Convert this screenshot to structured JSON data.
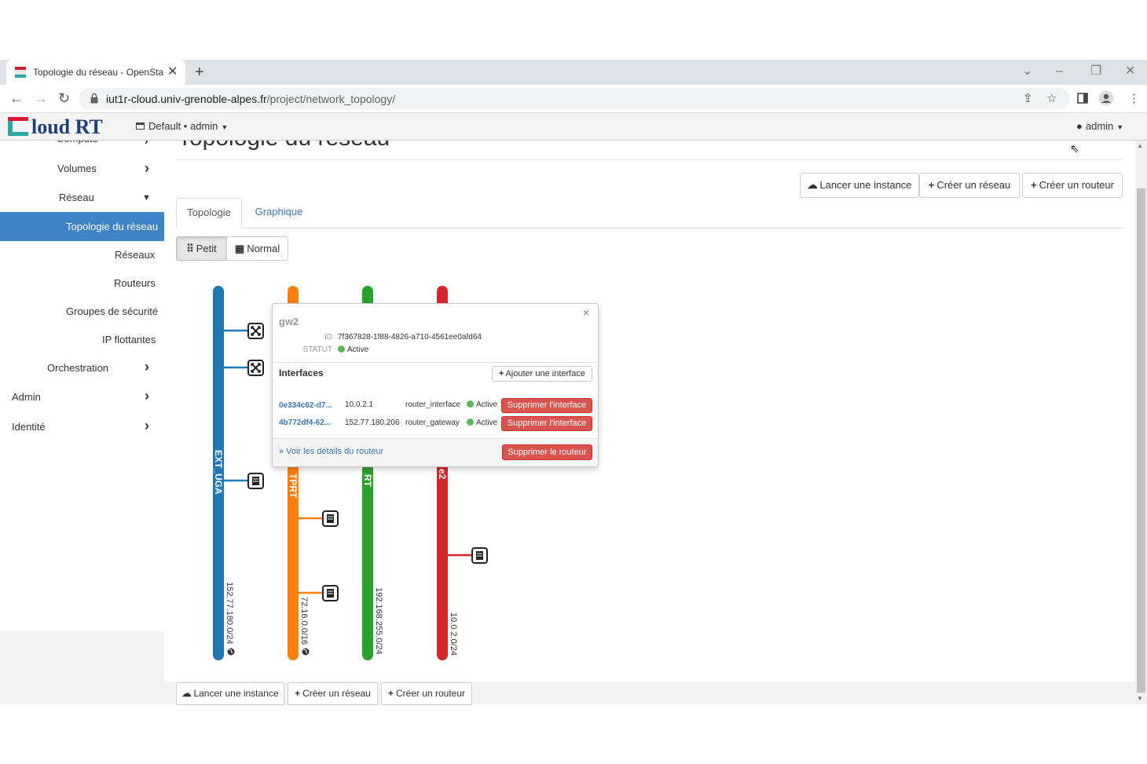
{
  "browser": {
    "tab_title": "Topologie du réseau - OpenStack",
    "url_host": "iut1r-cloud.univ-grenoble-alpes.fr",
    "url_path": "/project/network_topology/",
    "new_tab_symbol": "+",
    "close_symbol": "✕"
  },
  "header": {
    "logo_text": "loud RT",
    "domain_switcher": "Default • admin",
    "user": "admin"
  },
  "sidebar": {
    "items": [
      {
        "label": "Compute"
      },
      {
        "label": "Volumes"
      },
      {
        "label": "Réseau"
      },
      {
        "label": "Topologie du réseau"
      },
      {
        "label": "Réseaux"
      },
      {
        "label": "Routeurs"
      },
      {
        "label": "Groupes de sécurité"
      },
      {
        "label": "IP flottantes"
      },
      {
        "label": "Orchestration"
      },
      {
        "label": "Admin"
      },
      {
        "label": "Identité"
      }
    ]
  },
  "main": {
    "page_title": "Topologie du réseau",
    "actions": {
      "launch_instance": "Lancer une instance",
      "create_network": "Créer un réseau",
      "create_router": "Créer un routeur"
    },
    "tabs": [
      {
        "label": "Topologie"
      },
      {
        "label": "Graphique"
      }
    ],
    "view_toggle": {
      "small": "Petit",
      "normal": "Normal"
    }
  },
  "topology": {
    "networks": [
      {
        "name": "EXT_UGA",
        "cidr": "152.77.180.0/24",
        "color": "#1f77b4"
      },
      {
        "name": "TPRT",
        "cidr": "72.16.0.0/16",
        "color": "#ff7f0e"
      },
      {
        "name": "RT",
        "cidr": "192.168.255.0/24",
        "color": "#2ca02c"
      },
      {
        "name": "e2",
        "cidr": "10.0.2.0/24",
        "color": "#d62728"
      }
    ]
  },
  "popup": {
    "title": "gw2",
    "id_label": "ID",
    "id_value": "7f367828-1f88-4826-a710-4561ee0afd64",
    "status_label": "STATUT",
    "status_value": "Active",
    "interfaces_heading": "Interfaces",
    "add_interface": "Ajouter une interface",
    "interfaces": [
      {
        "id": "0e334c62-d7...",
        "ip": "10.0.2.1",
        "type": "router_interface",
        "status": "Active",
        "action": "Supprimer l'interface"
      },
      {
        "id": "4b772df4-62...",
        "ip": "152.77.180.206",
        "type": "router_gateway",
        "status": "Active",
        "action": "Supprimer l'interface"
      }
    ],
    "details_link": "» Voir les détails du routeur",
    "delete_router": "Supprimer le routeur",
    "close_symbol": "×"
  }
}
